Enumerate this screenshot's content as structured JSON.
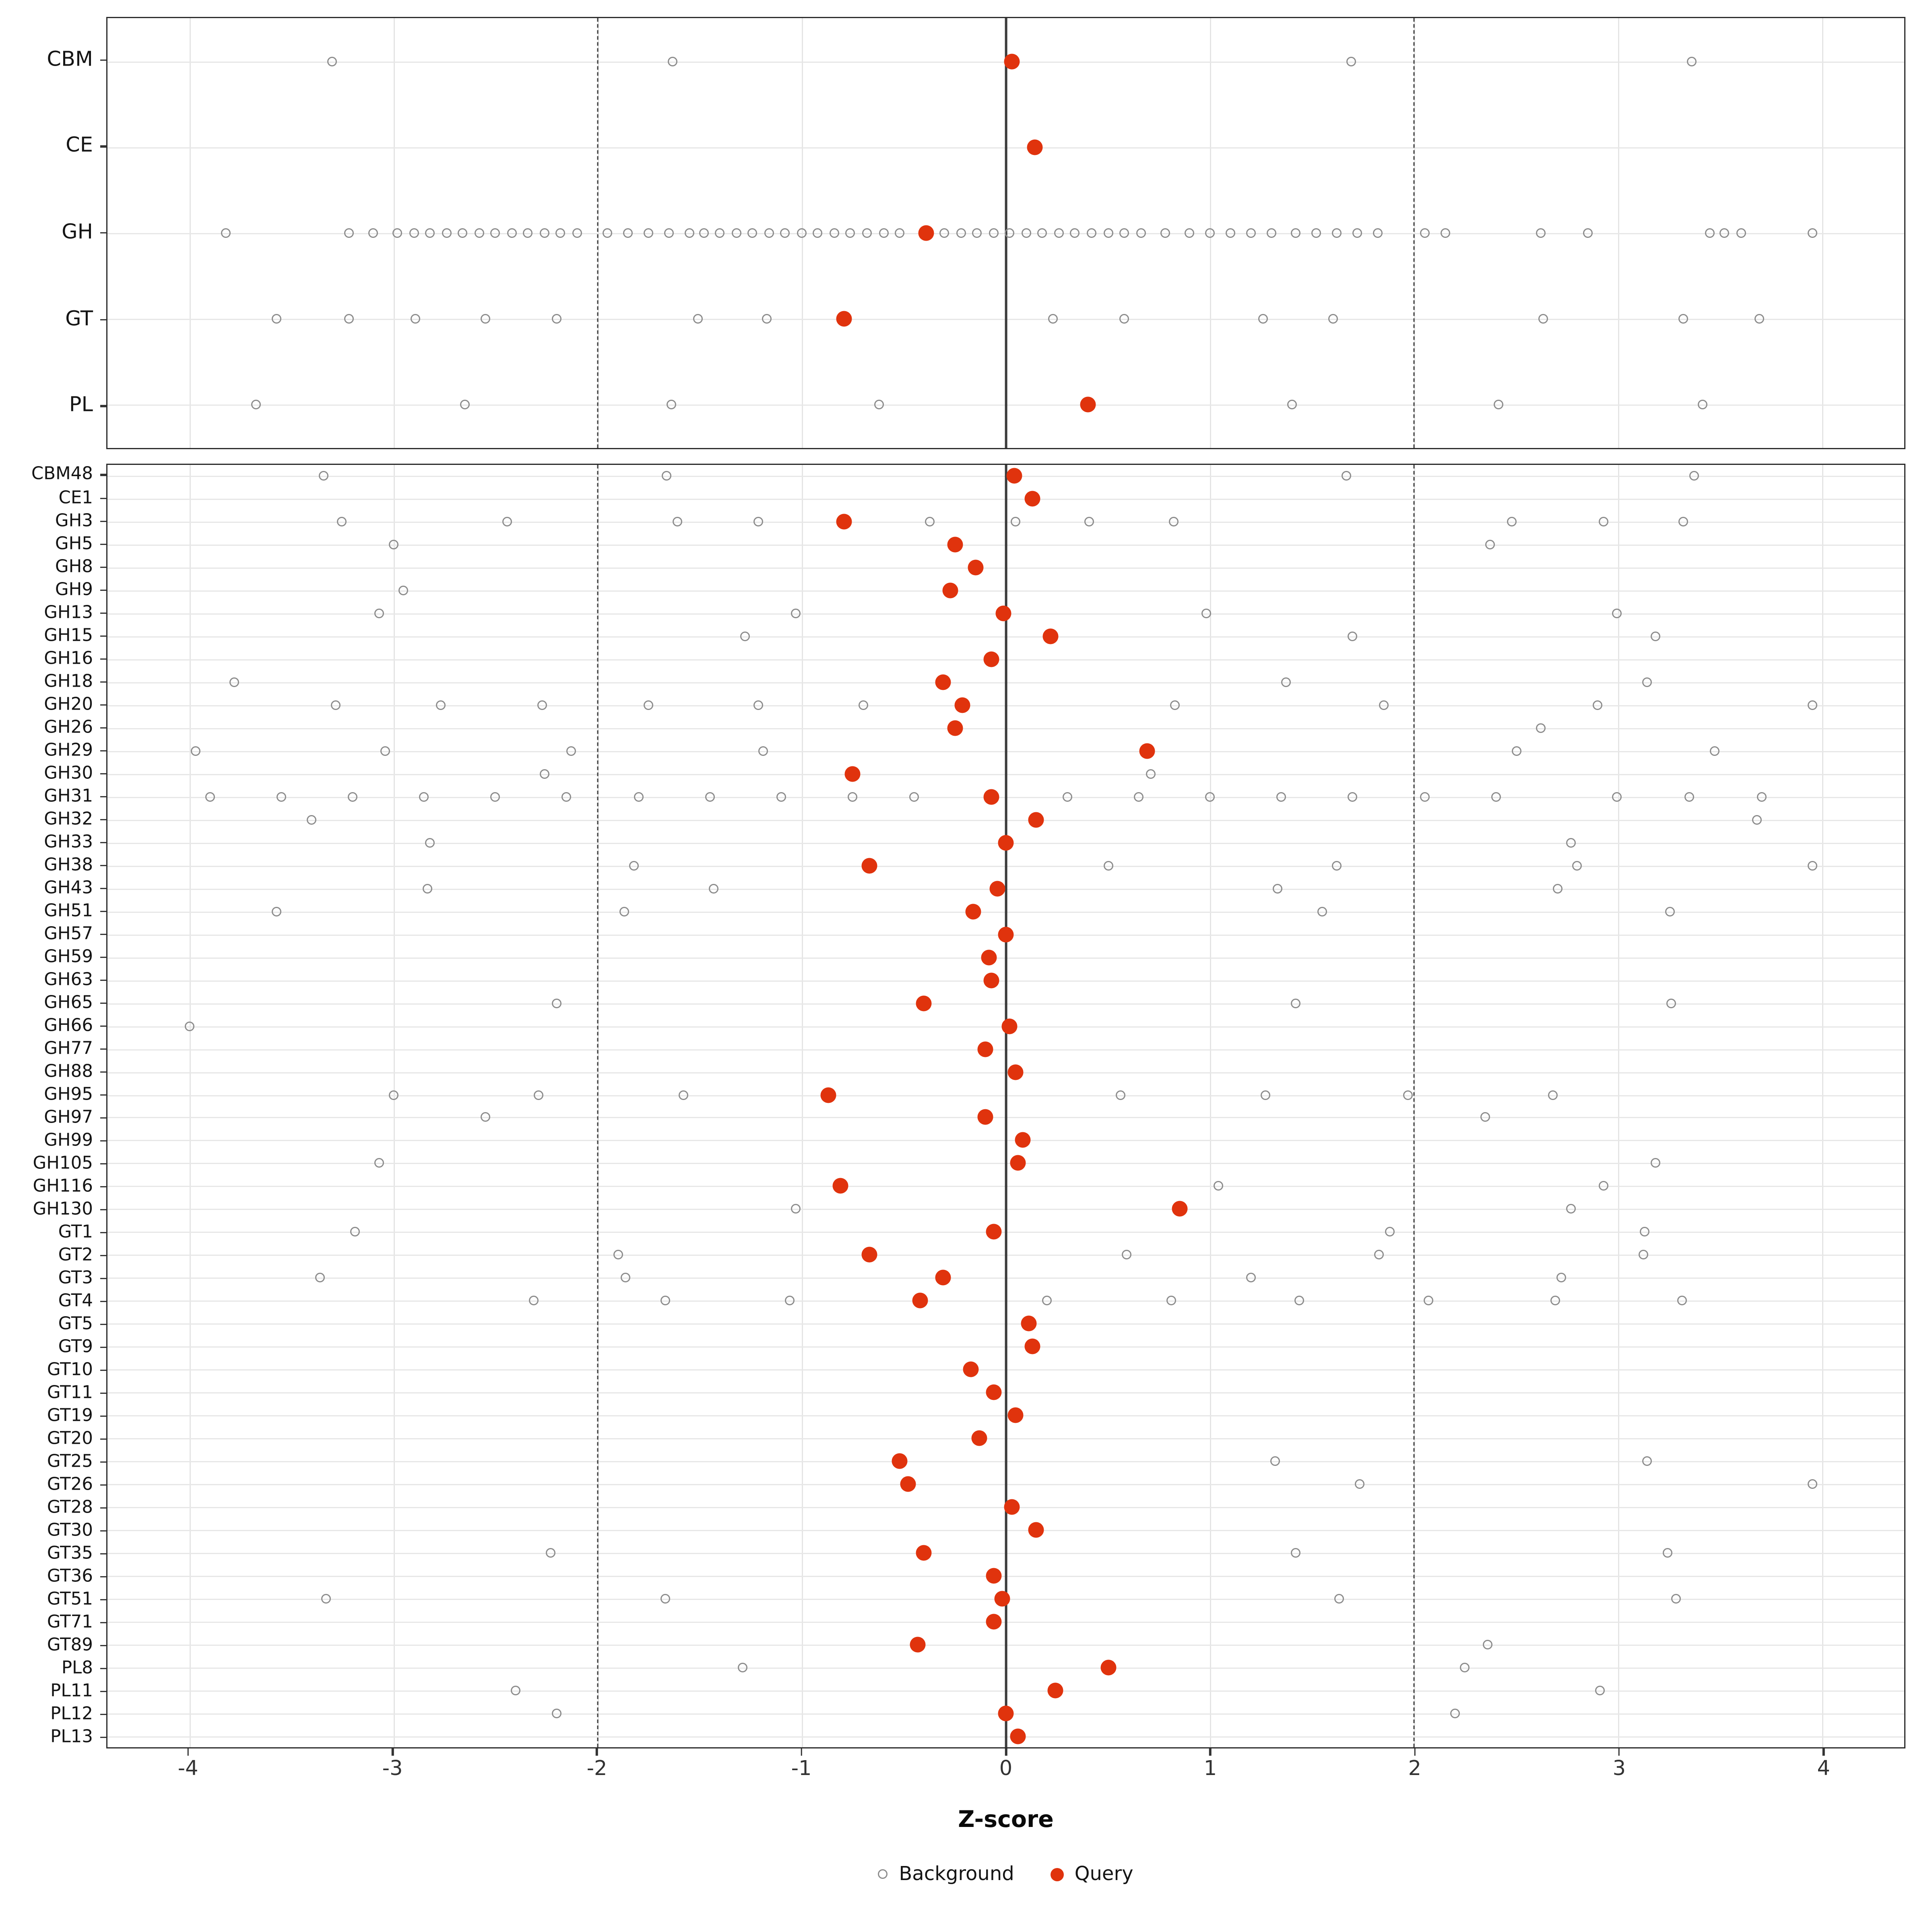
{
  "chart_data": {
    "type": "scatter",
    "title": "",
    "xlabel": "Z-score",
    "ylabel": "",
    "xlim": [
      -4.4,
      4.4
    ],
    "x_ticks": [
      -4,
      -3,
      -2,
      -1,
      0,
      1,
      2,
      3,
      4
    ],
    "reference_lines": {
      "solid": [
        0
      ],
      "dashed": [
        -2,
        2
      ]
    },
    "grid": true,
    "legend_position": "bottom",
    "colors": {
      "query": "#e0330d",
      "background": "#8c8c8c"
    },
    "legend": [
      {
        "label": "Background",
        "style": "open"
      },
      {
        "label": "Query",
        "style": "filled"
      }
    ],
    "panels": [
      {
        "name": "classes",
        "rows": [
          {
            "label": "CBM",
            "query": 0.03,
            "background": [
              -3.3,
              -1.63,
              1.69,
              3.36
            ]
          },
          {
            "label": "CE",
            "query": 0.14,
            "background": []
          },
          {
            "label": "GH",
            "query": -0.39,
            "background": [
              -3.82,
              -3.22,
              -3.1,
              -2.98,
              -2.9,
              -2.82,
              -2.74,
              -2.66,
              -2.58,
              -2.5,
              -2.42,
              -2.34,
              -2.26,
              -2.18,
              -2.1,
              -1.95,
              -1.85,
              -1.75,
              -1.65,
              -1.55,
              -1.48,
              -1.4,
              -1.32,
              -1.24,
              -1.16,
              -1.08,
              -1.0,
              -0.92,
              -0.84,
              -0.76,
              -0.68,
              -0.6,
              -0.52,
              -0.3,
              -0.22,
              -0.14,
              -0.06,
              0.02,
              0.1,
              0.18,
              0.26,
              0.34,
              0.42,
              0.5,
              0.58,
              0.66,
              0.78,
              0.9,
              1.0,
              1.1,
              1.2,
              1.3,
              1.42,
              1.52,
              1.62,
              1.72,
              1.82,
              2.05,
              2.15,
              2.62,
              2.85,
              3.45,
              3.52,
              3.6,
              3.95
            ]
          },
          {
            "label": "GT",
            "query": -0.79,
            "background": [
              -3.57,
              -3.22,
              -2.89,
              -2.55,
              -2.2,
              -1.51,
              -1.17,
              0.23,
              0.58,
              1.26,
              1.6,
              2.63,
              3.32,
              3.69
            ]
          },
          {
            "label": "PL",
            "query": 0.4,
            "background": [
              -3.67,
              -2.65,
              -1.64,
              -0.62,
              1.4,
              2.41,
              3.41
            ]
          }
        ]
      },
      {
        "name": "families",
        "rows": [
          {
            "label": "CBM48",
            "query": 0.04,
            "background": [
              -3.34,
              -1.66,
              1.67,
              3.37
            ]
          },
          {
            "label": "CE1",
            "query": 0.13,
            "background": []
          },
          {
            "label": "GH3",
            "query": -0.79,
            "background": [
              -3.25,
              -2.44,
              -1.61,
              -1.21,
              -0.37,
              0.05,
              0.41,
              0.82,
              2.48,
              2.93,
              3.32
            ]
          },
          {
            "label": "GH5",
            "query": -0.25,
            "background": [
              -3.0,
              2.37
            ]
          },
          {
            "label": "GH8",
            "query": -0.15,
            "background": []
          },
          {
            "label": "GH9",
            "query": -0.27,
            "background": [
              -2.95
            ]
          },
          {
            "label": "GH13",
            "query": -0.01,
            "background": [
              -3.07,
              -1.03,
              0.98,
              2.99
            ]
          },
          {
            "label": "GH15",
            "query": 0.22,
            "background": [
              -1.28,
              1.7,
              3.18
            ]
          },
          {
            "label": "GH16",
            "query": -0.07,
            "background": []
          },
          {
            "label": "GH18",
            "query": -0.31,
            "background": [
              -3.78,
              1.37,
              3.14
            ]
          },
          {
            "label": "GH20",
            "query": -0.21,
            "background": [
              -3.28,
              -2.77,
              -2.27,
              -1.75,
              -1.21,
              -0.7,
              0.83,
              1.85,
              2.9,
              3.95
            ]
          },
          {
            "label": "GH26",
            "query": -0.25,
            "background": [
              2.62
            ]
          },
          {
            "label": "GH29",
            "query": 0.69,
            "background": [
              -3.97,
              -3.04,
              -2.13,
              -1.19,
              2.5,
              3.47
            ]
          },
          {
            "label": "GH30",
            "query": -0.75,
            "background": [
              -2.26,
              0.71
            ]
          },
          {
            "label": "GH31",
            "query": -0.07,
            "background": [
              -3.9,
              -3.55,
              -3.2,
              -2.85,
              -2.5,
              -2.15,
              -1.8,
              -1.45,
              -1.1,
              -0.75,
              -0.45,
              0.3,
              0.65,
              1.0,
              1.35,
              1.7,
              2.05,
              2.4,
              2.99,
              3.35,
              3.7
            ]
          },
          {
            "label": "GH32",
            "query": 0.15,
            "background": [
              -3.4,
              3.68
            ]
          },
          {
            "label": "GH33",
            "query": 0.0,
            "background": [
              -2.82,
              2.77
            ]
          },
          {
            "label": "GH38",
            "query": -0.67,
            "background": [
              -1.82,
              0.5,
              1.62,
              2.8,
              3.95
            ]
          },
          {
            "label": "GH43",
            "query": -0.04,
            "background": [
              -2.83,
              -1.43,
              1.33,
              2.7
            ]
          },
          {
            "label": "GH51",
            "query": -0.16,
            "background": [
              -3.57,
              -1.87,
              1.55,
              3.25
            ]
          },
          {
            "label": "GH57",
            "query": 0.0,
            "background": []
          },
          {
            "label": "GH59",
            "query": -0.08,
            "background": []
          },
          {
            "label": "GH63",
            "query": -0.07,
            "background": []
          },
          {
            "label": "GH65",
            "query": -0.4,
            "background": [
              -2.2,
              1.42,
              3.26
            ]
          },
          {
            "label": "GH66",
            "query": 0.02,
            "background": [
              -4.0
            ]
          },
          {
            "label": "GH77",
            "query": -0.1,
            "background": []
          },
          {
            "label": "GH88",
            "query": 0.05,
            "background": []
          },
          {
            "label": "GH95",
            "query": -0.87,
            "background": [
              -3.0,
              -2.29,
              -1.58,
              0.56,
              1.27,
              1.97,
              2.68
            ]
          },
          {
            "label": "GH97",
            "query": -0.1,
            "background": [
              -2.55,
              2.35
            ]
          },
          {
            "label": "GH99",
            "query": 0.08,
            "background": []
          },
          {
            "label": "GH105",
            "query": 0.06,
            "background": [
              -3.07,
              3.18
            ]
          },
          {
            "label": "GH116",
            "query": -0.81,
            "background": [
              1.04,
              2.93
            ]
          },
          {
            "label": "GH130",
            "query": 0.85,
            "background": [
              -1.03,
              2.77
            ]
          },
          {
            "label": "GT1",
            "query": -0.06,
            "background": [
              -3.19,
              1.88,
              3.13
            ]
          },
          {
            "label": "GT2",
            "query": -0.67,
            "background": [
              -1.9,
              0.59,
              1.83,
              3.12
            ]
          },
          {
            "label": "GT3",
            "query": -0.31,
            "background": [
              -3.36,
              -1.86,
              1.2,
              2.72
            ]
          },
          {
            "label": "GT4",
            "query": -0.42,
            "background": [
              -2.31,
              -1.67,
              -1.06,
              0.2,
              0.81,
              1.44,
              2.07,
              2.69,
              3.31
            ]
          },
          {
            "label": "GT5",
            "query": 0.11,
            "background": []
          },
          {
            "label": "GT9",
            "query": 0.13,
            "background": []
          },
          {
            "label": "GT10",
            "query": -0.17,
            "background": []
          },
          {
            "label": "GT11",
            "query": -0.06,
            "background": []
          },
          {
            "label": "GT19",
            "query": 0.05,
            "background": []
          },
          {
            "label": "GT20",
            "query": -0.13,
            "background": []
          },
          {
            "label": "GT25",
            "query": -0.52,
            "background": [
              1.32,
              3.14
            ]
          },
          {
            "label": "GT26",
            "query": -0.48,
            "background": [
              1.73,
              3.95
            ]
          },
          {
            "label": "GT28",
            "query": 0.03,
            "background": []
          },
          {
            "label": "GT30",
            "query": 0.15,
            "background": []
          },
          {
            "label": "GT35",
            "query": -0.4,
            "background": [
              -2.23,
              1.42,
              3.24
            ]
          },
          {
            "label": "GT36",
            "query": -0.06,
            "background": []
          },
          {
            "label": "GT51",
            "query": -0.02,
            "background": [
              -3.33,
              -1.67,
              1.63,
              3.28
            ]
          },
          {
            "label": "GT71",
            "query": -0.06,
            "background": []
          },
          {
            "label": "GT89",
            "query": -0.43,
            "background": [
              2.36
            ]
          },
          {
            "label": "PL8",
            "query": 0.5,
            "background": [
              -1.29,
              2.25
            ]
          },
          {
            "label": "PL11",
            "query": 0.24,
            "background": [
              -2.4,
              2.91
            ]
          },
          {
            "label": "PL12",
            "query": 0.0,
            "background": [
              -2.2,
              2.2
            ]
          },
          {
            "label": "PL13",
            "query": 0.06,
            "background": []
          }
        ]
      }
    ]
  }
}
